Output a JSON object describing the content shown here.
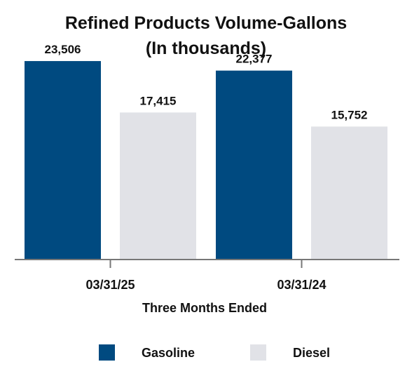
{
  "chart_data": {
    "type": "bar",
    "title": "Refined Products Volume-Gallons",
    "subtitle": "(In thousands)",
    "xlabel": "Three Months Ended",
    "ylabel": "",
    "categories": [
      "03/31/25",
      "03/31/24"
    ],
    "series": [
      {
        "name": "Gasoline",
        "color": "#004a80",
        "values": [
          23506,
          22377
        ],
        "labels": [
          "23,506",
          "22,377"
        ]
      },
      {
        "name": "Diesel",
        "color": "#e1e2e7",
        "values": [
          17415,
          15752
        ],
        "labels": [
          "17,415",
          "15,752"
        ]
      }
    ],
    "ylim": [
      0,
      27000
    ],
    "grid": false,
    "legend": "bottom"
  }
}
